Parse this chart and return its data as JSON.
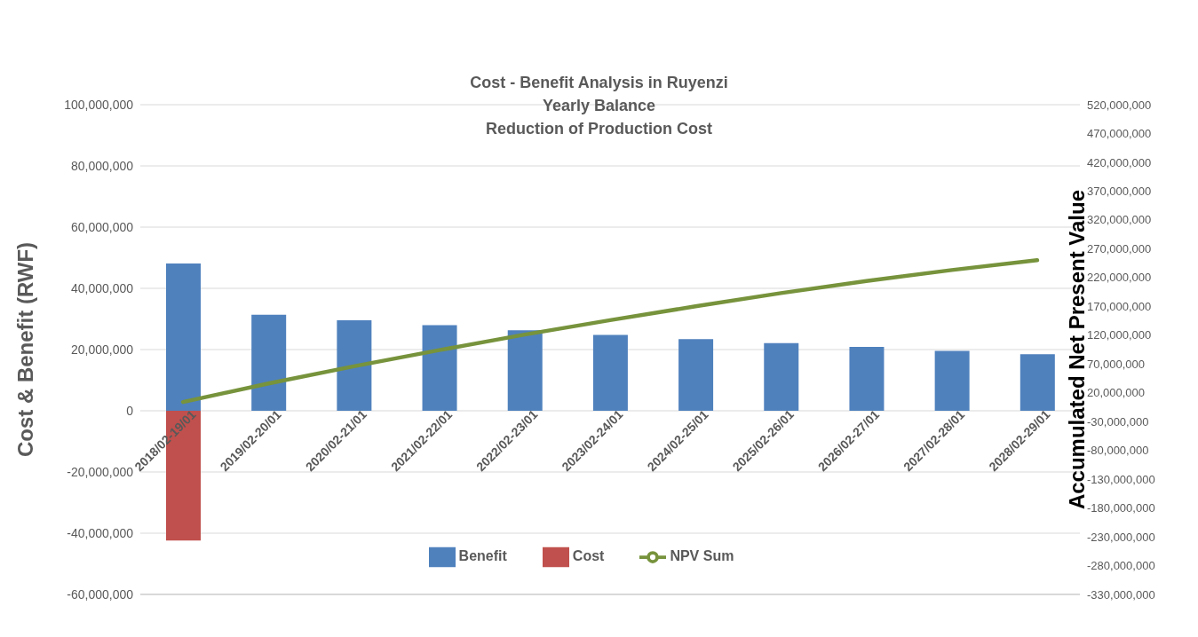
{
  "chart_data": {
    "type": "bar",
    "title": "Cost - Benefit Analysis in Ruyenzi\nYearly Balance\nReduction of Production Cost",
    "categories": [
      "2018/02-19/01",
      "2019/02-20/01",
      "2020/02-21/01",
      "2021/02-22/01",
      "2022/02-23/01",
      "2023/02-24/01",
      "2024/02-25/01",
      "2025/02-26/01",
      "2026/02-27/01",
      "2027/02-28/01",
      "2028/02-29/01"
    ],
    "stacked": true,
    "series": [
      {
        "name": "Benefit",
        "color": "#4f81bd",
        "values": [
          48100000,
          31400000,
          29600000,
          28000000,
          26300000,
          24800000,
          23400000,
          22100000,
          20900000,
          19600000,
          18500000
        ]
      },
      {
        "name": "Cost",
        "color": "#c0504d",
        "values": [
          -42400000,
          null,
          null,
          null,
          null,
          null,
          null,
          null,
          null,
          null,
          null
        ]
      },
      {
        "name": "NPV Sum",
        "type": "line",
        "axis": "y2",
        "color": "#77933c",
        "values": [
          4000000,
          36000000,
          66000000,
          94000000,
          121000000,
          146000000,
          170000000,
          193000000,
          214000000,
          233000000,
          250000000
        ]
      }
    ],
    "ylabel": "Cost & Benefit (RWF)",
    "y2label": "Accumulated Net Present Value",
    "ylim": [
      -60000000,
      100000000
    ],
    "yticks": [
      {
        "value": -60000000,
        "label": "-60,000,000"
      },
      {
        "value": -40000000,
        "label": "-40,000,000"
      },
      {
        "value": -20000000,
        "label": "-20,000,000"
      },
      {
        "value": 0,
        "label": "0"
      },
      {
        "value": 20000000,
        "label": "20,000,000"
      },
      {
        "value": 40000000,
        "label": "40,000,000"
      },
      {
        "value": 60000000,
        "label": "60,000,000"
      },
      {
        "value": 80000000,
        "label": "80,000,000"
      },
      {
        "value": 100000000,
        "label": "100,000,000"
      }
    ],
    "y2lim": [
      -330000000,
      520000000
    ],
    "y2ticks": [
      {
        "value": -330000000,
        "label": "-330,000,000"
      },
      {
        "value": -280000000,
        "label": "-280,000,000"
      },
      {
        "value": -230000000,
        "label": "-230,000,000"
      },
      {
        "value": -180000000,
        "label": "-180,000,000"
      },
      {
        "value": -130000000,
        "label": "-130,000,000"
      },
      {
        "value": -80000000,
        "label": "-80,000,000"
      },
      {
        "value": -30000000,
        "label": "-30,000,000"
      },
      {
        "value": 20000000,
        "label": "20,000,000"
      },
      {
        "value": 70000000,
        "label": "70,000,000"
      },
      {
        "value": 120000000,
        "label": "120,000,000"
      },
      {
        "value": 170000000,
        "label": "170,000,000"
      },
      {
        "value": 220000000,
        "label": "220,000,000"
      },
      {
        "value": 270000000,
        "label": "270,000,000"
      },
      {
        "value": 320000000,
        "label": "320,000,000"
      },
      {
        "value": 370000000,
        "label": "370,000,000"
      },
      {
        "value": 420000000,
        "label": "420,000,000"
      },
      {
        "value": 470000000,
        "label": "470,000,000"
      },
      {
        "value": 520000000,
        "label": "520,000,000"
      }
    ],
    "grid": "y",
    "legend": "bottom",
    "marker": "none",
    "line_style": "solid"
  }
}
